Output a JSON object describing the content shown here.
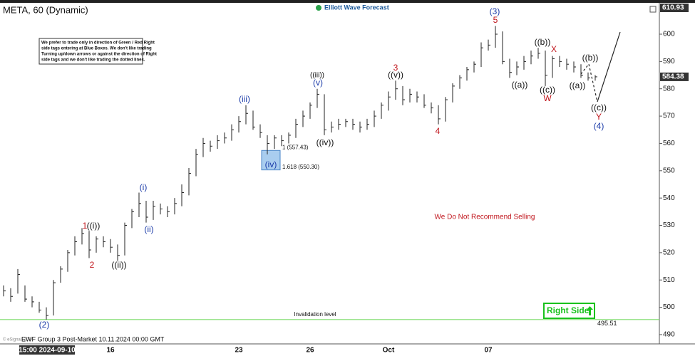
{
  "chart_data": {
    "type": "ohlc",
    "title": "META, 60 (Dynamic)",
    "brand": "Elliott Wave Forecast",
    "footer": "EWF Group 3 Post-Market 10.11.2024 00:00 GMT",
    "watermark": "© eSignal, 2024",
    "note": [
      "We prefer to trade only in direction of Green / Red Right",
      "side tags entering at Blue Boxes. We don't like trading",
      "Turning up/down arrows or against the direction of Right",
      "side tags and we don't like trading the dotted lines."
    ],
    "right_side": "Right Side",
    "color": "#222222",
    "ylim": [
      486.6,
      611.47
    ],
    "yticks": [
      490,
      500,
      510,
      520,
      530,
      540,
      550,
      560,
      570,
      580,
      590,
      600
    ],
    "price_labels": [
      610.93,
      584.38
    ],
    "invalidation": {
      "value": 495.51,
      "label": "Invalidation level",
      "color": "#7ddc6a"
    },
    "fib_levels": [
      {
        "value": 557.43,
        "label": "1 (557.43)"
      },
      {
        "value": 550.3,
        "label": "1.618 (550.30)"
      }
    ],
    "categories": [
      null,
      null,
      null,
      null,
      null,
      null,
      "15:00 2024-09-10",
      null,
      null,
      null,
      null,
      null,
      null,
      null,
      null,
      "16",
      null,
      null,
      null,
      null,
      null,
      null,
      null,
      null,
      null,
      null,
      null,
      null,
      null,
      null,
      null,
      null,
      null,
      "23",
      null,
      null,
      null,
      null,
      null,
      null,
      null,
      null,
      null,
      "26",
      null,
      null,
      null,
      null,
      null,
      null,
      null,
      null,
      null,
      null,
      "Oct",
      null,
      null,
      null,
      null,
      null,
      null,
      null,
      null,
      null,
      null,
      null,
      null,
      null,
      "07",
      null,
      null,
      null,
      null,
      null,
      null,
      null,
      null,
      null,
      null,
      null,
      null,
      null,
      null,
      null
    ],
    "high": [
      508,
      507,
      514,
      508,
      504,
      502,
      500,
      510,
      515,
      521,
      526,
      529,
      528,
      526,
      526,
      525,
      523,
      531,
      536,
      542,
      539,
      539,
      538,
      537,
      540,
      545,
      551,
      558,
      562,
      561,
      563,
      564,
      567,
      570,
      574,
      572,
      567,
      563,
      563,
      563,
      564,
      569,
      572,
      575,
      580,
      578,
      568,
      569,
      569,
      569,
      568,
      569,
      572,
      575,
      579,
      583,
      581,
      580,
      579,
      578,
      575,
      574,
      577,
      582,
      585,
      588,
      590,
      597,
      598,
      603,
      601,
      591,
      590,
      592,
      594,
      595,
      594,
      592,
      592,
      591,
      590,
      589,
      586,
      585
    ],
    "low": [
      504,
      502,
      505,
      502,
      500,
      498,
      495.5,
      497,
      509,
      513,
      519,
      523,
      518,
      520,
      522,
      520,
      517,
      519,
      529,
      533,
      531,
      532,
      534,
      533,
      534,
      537,
      541,
      548,
      555,
      557,
      558,
      560,
      561,
      564,
      567,
      565,
      562,
      556,
      558,
      559,
      560,
      562,
      566,
      569,
      573,
      563,
      564,
      565,
      566,
      565,
      564,
      565,
      566,
      569,
      572,
      576,
      574,
      575,
      575,
      573,
      571,
      567,
      568,
      575,
      580,
      583,
      586,
      588,
      594,
      595,
      589,
      584,
      585,
      587,
      589,
      591,
      581,
      584,
      588,
      587,
      586,
      584,
      583,
      583
    ],
    "close": [
      506,
      504,
      512,
      503,
      502,
      499,
      497,
      509,
      514,
      520,
      524,
      527,
      521,
      525,
      524,
      522,
      519,
      530,
      535,
      538,
      533,
      537,
      536,
      535,
      538,
      542,
      549,
      556,
      560,
      559,
      561,
      562,
      565,
      568,
      571,
      566,
      564,
      560,
      562,
      561,
      563,
      567,
      570,
      574,
      578,
      565,
      566,
      567,
      568,
      567,
      566,
      567,
      570,
      574,
      577,
      580,
      576,
      578,
      577,
      574,
      573,
      569,
      576,
      581,
      584,
      587,
      589,
      595,
      596,
      600,
      590,
      586,
      588,
      590,
      592,
      593,
      585,
      591,
      590,
      589,
      588,
      585,
      584,
      584.38
    ],
    "annotations": [
      {
        "text": "(2)",
        "color": "#1a3aa8"
      },
      {
        "text": "1",
        "color": "#c0141b"
      },
      {
        "text": "((i))",
        "color": "#111111"
      },
      {
        "text": "2",
        "color": "#c0141b"
      },
      {
        "text": "((ii))",
        "color": "#111111"
      },
      {
        "text": "(i)",
        "color": "#1a3aa8"
      },
      {
        "text": "(ii)",
        "color": "#1a3aa8"
      },
      {
        "text": "(iii)",
        "color": "#1a3aa8"
      },
      {
        "text": "(iv)",
        "color": "#1a3aa8"
      },
      {
        "text": "((iii))",
        "color": "#111111"
      },
      {
        "text": "(v)",
        "color": "#1a3aa8"
      },
      {
        "text": "((iv))",
        "color": "#111111"
      },
      {
        "text": "3",
        "color": "#c0141b"
      },
      {
        "text": "((v))",
        "color": "#111111"
      },
      {
        "text": "4",
        "color": "#c0141b"
      },
      {
        "text": "(3)",
        "color": "#1a3aa8"
      },
      {
        "text": "5",
        "color": "#c0141b"
      },
      {
        "text": "((a))",
        "color": "#111111"
      },
      {
        "text": "((b))",
        "color": "#111111"
      },
      {
        "text": "X",
        "color": "#c0141b"
      },
      {
        "text": "((c))",
        "color": "#111111"
      },
      {
        "text": "W",
        "color": "#c0141b"
      },
      {
        "text": "((b))",
        "color": "#111111"
      },
      {
        "text": "((a))",
        "color": "#111111"
      },
      {
        "text": "((c))",
        "color": "#111111"
      },
      {
        "text": "Y",
        "color": "#c0141b"
      },
      {
        "text": "(4)",
        "color": "#1a3aa8"
      },
      {
        "text": "We Do Not Recommend Selling",
        "color": "#c0141b"
      }
    ]
  }
}
